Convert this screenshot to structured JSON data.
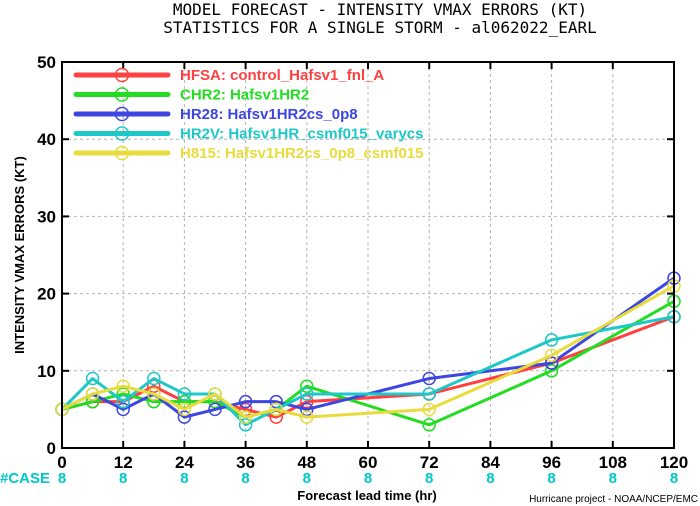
{
  "chart_data": {
    "type": "line",
    "title": "MODEL FORECAST - INTENSITY VMAX ERRORS (KT)",
    "subtitle": "STATISTICS FOR A SINGLE STORM - al062022_EARL",
    "xlabel": "Forecast lead time (hr)",
    "ylabel": "INTENSITY VMAX ERRORS (KT)",
    "xlim": [
      0,
      120
    ],
    "ylim": [
      0,
      50
    ],
    "xticks": [
      0,
      12,
      24,
      36,
      48,
      60,
      72,
      84,
      96,
      108,
      120
    ],
    "yticks": [
      0,
      10,
      20,
      30,
      40,
      50
    ],
    "grid": true,
    "legend_position": "top-left",
    "case_label": "#CASE",
    "cases": [
      {
        "x": 0,
        "n": "8"
      },
      {
        "x": 12,
        "n": "8"
      },
      {
        "x": 24,
        "n": "8"
      },
      {
        "x": 36,
        "n": "8"
      },
      {
        "x": 48,
        "n": "8"
      },
      {
        "x": 60,
        "n": "8"
      },
      {
        "x": 72,
        "n": "8"
      },
      {
        "x": 84,
        "n": "8"
      },
      {
        "x": 96,
        "n": "8"
      },
      {
        "x": 108,
        "n": "8"
      },
      {
        "x": 120,
        "n": "8"
      }
    ],
    "credit": "Hurricane project - NOAA/NCEP/EMC",
    "series": [
      {
        "name": "HFSA",
        "legend": "HFSA: control_Hafsv1_fnl_A",
        "color": "#ff4040",
        "points": [
          [
            0,
            5
          ],
          [
            6,
            6
          ],
          [
            12,
            6
          ],
          [
            18,
            8
          ],
          [
            24,
            6
          ],
          [
            30,
            6
          ],
          [
            36,
            5
          ],
          [
            42,
            4
          ],
          [
            48,
            6
          ],
          [
            72,
            7
          ],
          [
            96,
            11
          ],
          [
            120,
            17
          ]
        ]
      },
      {
        "name": "CHR2",
        "legend": "CHR2: Hafsv1HR2",
        "color": "#22dd22",
        "points": [
          [
            0,
            5
          ],
          [
            6,
            6
          ],
          [
            12,
            7
          ],
          [
            18,
            6
          ],
          [
            24,
            6
          ],
          [
            30,
            6
          ],
          [
            36,
            4
          ],
          [
            42,
            5
          ],
          [
            48,
            8
          ],
          [
            72,
            3
          ],
          [
            96,
            10
          ],
          [
            120,
            19
          ]
        ]
      },
      {
        "name": "HR28",
        "legend": "HR28: Hafsv1HR2cs_0p8",
        "color": "#3c46e0",
        "points": [
          [
            0,
            5
          ],
          [
            6,
            7
          ],
          [
            12,
            5
          ],
          [
            18,
            7
          ],
          [
            24,
            4
          ],
          [
            30,
            5
          ],
          [
            36,
            6
          ],
          [
            42,
            6
          ],
          [
            48,
            5
          ],
          [
            72,
            9
          ],
          [
            96,
            11
          ],
          [
            120,
            22
          ]
        ]
      },
      {
        "name": "HR2V",
        "legend": "HR2V: Hafsv1HR_csmf015_varycs",
        "color": "#1ec8c8",
        "points": [
          [
            0,
            5
          ],
          [
            6,
            9
          ],
          [
            12,
            6
          ],
          [
            18,
            9
          ],
          [
            24,
            7
          ],
          [
            30,
            7
          ],
          [
            36,
            3
          ],
          [
            42,
            5
          ],
          [
            48,
            7
          ],
          [
            72,
            7
          ],
          [
            96,
            14
          ],
          [
            120,
            17
          ]
        ]
      },
      {
        "name": "H815",
        "legend": "H815: Hafsv1HR2cs_0p8_csmf015",
        "color": "#e8dc3c",
        "points": [
          [
            0,
            5
          ],
          [
            6,
            7
          ],
          [
            12,
            8
          ],
          [
            18,
            7
          ],
          [
            24,
            5
          ],
          [
            30,
            7
          ],
          [
            36,
            4
          ],
          [
            42,
            5
          ],
          [
            48,
            4
          ],
          [
            72,
            5
          ],
          [
            96,
            12
          ],
          [
            120,
            21
          ]
        ]
      }
    ]
  }
}
